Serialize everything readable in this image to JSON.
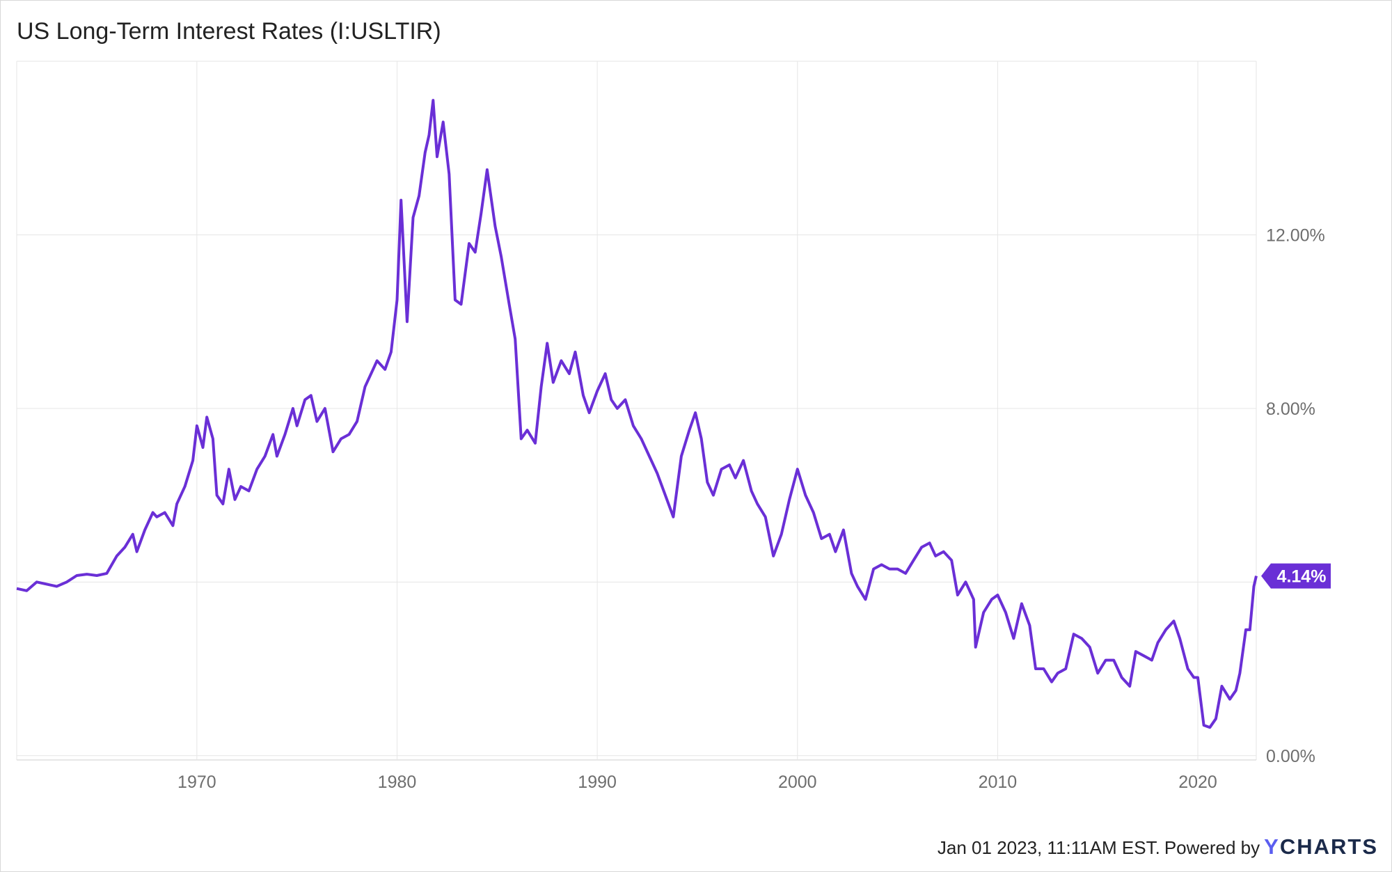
{
  "title": "US Long-Term Interest Rates (I:USLTIR)",
  "footer": {
    "timestamp": "Jan 01 2023, 11:11AM EST.",
    "powered_by": "Powered by",
    "brand_y": "Y",
    "brand_rest": "CHARTS"
  },
  "colors": {
    "line": "#6a2fd6",
    "badge": "#6a2fd6",
    "grid": "#e6e6e6"
  },
  "chart_data": {
    "type": "line",
    "title": "US Long-Term Interest Rates (I:USLTIR)",
    "x_ticks": [
      1970,
      1980,
      1990,
      2000,
      2010,
      2020
    ],
    "y_ticks": [
      {
        "value": 0,
        "label": "0.00%"
      },
      {
        "value": 4,
        "label": ""
      },
      {
        "value": 8,
        "label": "8.00%"
      },
      {
        "value": 12,
        "label": "12.00%"
      }
    ],
    "xlim": [
      1961.0,
      2022.92
    ],
    "ylim": [
      -0.1,
      16.0
    ],
    "last_value_label": "4.14%",
    "series": [
      {
        "points": [
          [
            1961.0,
            3.85
          ],
          [
            1961.5,
            3.8
          ],
          [
            1962.0,
            4.0
          ],
          [
            1962.5,
            3.95
          ],
          [
            1963.0,
            3.9
          ],
          [
            1963.5,
            4.0
          ],
          [
            1964.0,
            4.15
          ],
          [
            1964.5,
            4.18
          ],
          [
            1965.0,
            4.15
          ],
          [
            1965.5,
            4.2
          ],
          [
            1966.0,
            4.6
          ],
          [
            1966.4,
            4.8
          ],
          [
            1966.8,
            5.1
          ],
          [
            1967.0,
            4.7
          ],
          [
            1967.4,
            5.2
          ],
          [
            1967.8,
            5.6
          ],
          [
            1968.0,
            5.5
          ],
          [
            1968.4,
            5.6
          ],
          [
            1968.8,
            5.3
          ],
          [
            1969.0,
            5.8
          ],
          [
            1969.4,
            6.2
          ],
          [
            1969.8,
            6.8
          ],
          [
            1970.0,
            7.6
          ],
          [
            1970.3,
            7.1
          ],
          [
            1970.5,
            7.8
          ],
          [
            1970.8,
            7.3
          ],
          [
            1971.0,
            6.0
          ],
          [
            1971.3,
            5.8
          ],
          [
            1971.6,
            6.6
          ],
          [
            1971.9,
            5.9
          ],
          [
            1972.2,
            6.2
          ],
          [
            1972.6,
            6.1
          ],
          [
            1973.0,
            6.6
          ],
          [
            1973.4,
            6.9
          ],
          [
            1973.8,
            7.4
          ],
          [
            1974.0,
            6.9
          ],
          [
            1974.4,
            7.4
          ],
          [
            1974.8,
            8.0
          ],
          [
            1975.0,
            7.6
          ],
          [
            1975.4,
            8.2
          ],
          [
            1975.7,
            8.3
          ],
          [
            1976.0,
            7.7
          ],
          [
            1976.4,
            8.0
          ],
          [
            1976.8,
            7.0
          ],
          [
            1977.2,
            7.3
          ],
          [
            1977.6,
            7.4
          ],
          [
            1978.0,
            7.7
          ],
          [
            1978.4,
            8.5
          ],
          [
            1978.8,
            8.9
          ],
          [
            1979.0,
            9.1
          ],
          [
            1979.4,
            8.9
          ],
          [
            1979.7,
            9.3
          ],
          [
            1980.0,
            10.5
          ],
          [
            1980.2,
            12.8
          ],
          [
            1980.5,
            10.0
          ],
          [
            1980.8,
            12.4
          ],
          [
            1981.1,
            12.9
          ],
          [
            1981.4,
            13.9
          ],
          [
            1981.6,
            14.3
          ],
          [
            1981.8,
            15.1
          ],
          [
            1982.0,
            13.8
          ],
          [
            1982.3,
            14.6
          ],
          [
            1982.6,
            13.4
          ],
          [
            1982.9,
            10.5
          ],
          [
            1983.2,
            10.4
          ],
          [
            1983.6,
            11.8
          ],
          [
            1983.9,
            11.6
          ],
          [
            1984.2,
            12.5
          ],
          [
            1984.5,
            13.5
          ],
          [
            1984.9,
            12.2
          ],
          [
            1985.2,
            11.5
          ],
          [
            1985.6,
            10.4
          ],
          [
            1985.9,
            9.6
          ],
          [
            1986.2,
            7.3
          ],
          [
            1986.5,
            7.5
          ],
          [
            1986.9,
            7.2
          ],
          [
            1987.2,
            8.5
          ],
          [
            1987.5,
            9.5
          ],
          [
            1987.8,
            8.6
          ],
          [
            1988.2,
            9.1
          ],
          [
            1988.6,
            8.8
          ],
          [
            1988.9,
            9.3
          ],
          [
            1989.3,
            8.3
          ],
          [
            1989.6,
            7.9
          ],
          [
            1990.0,
            8.4
          ],
          [
            1990.4,
            8.8
          ],
          [
            1990.7,
            8.2
          ],
          [
            1991.0,
            8.0
          ],
          [
            1991.4,
            8.2
          ],
          [
            1991.8,
            7.6
          ],
          [
            1992.2,
            7.3
          ],
          [
            1992.6,
            6.9
          ],
          [
            1993.0,
            6.5
          ],
          [
            1993.4,
            6.0
          ],
          [
            1993.8,
            5.5
          ],
          [
            1994.2,
            6.9
          ],
          [
            1994.6,
            7.5
          ],
          [
            1994.9,
            7.9
          ],
          [
            1995.2,
            7.3
          ],
          [
            1995.5,
            6.3
          ],
          [
            1995.8,
            6.0
          ],
          [
            1996.2,
            6.6
          ],
          [
            1996.6,
            6.7
          ],
          [
            1996.9,
            6.4
          ],
          [
            1997.3,
            6.8
          ],
          [
            1997.7,
            6.1
          ],
          [
            1998.0,
            5.8
          ],
          [
            1998.4,
            5.5
          ],
          [
            1998.8,
            4.6
          ],
          [
            1999.2,
            5.1
          ],
          [
            1999.6,
            5.9
          ],
          [
            2000.0,
            6.6
          ],
          [
            2000.4,
            6.0
          ],
          [
            2000.8,
            5.6
          ],
          [
            2001.2,
            5.0
          ],
          [
            2001.6,
            5.1
          ],
          [
            2001.9,
            4.7
          ],
          [
            2002.3,
            5.2
          ],
          [
            2002.7,
            4.2
          ],
          [
            2003.0,
            3.9
          ],
          [
            2003.4,
            3.6
          ],
          [
            2003.8,
            4.3
          ],
          [
            2004.2,
            4.4
          ],
          [
            2004.6,
            4.3
          ],
          [
            2005.0,
            4.3
          ],
          [
            2005.4,
            4.2
          ],
          [
            2005.8,
            4.5
          ],
          [
            2006.2,
            4.8
          ],
          [
            2006.6,
            4.9
          ],
          [
            2006.9,
            4.6
          ],
          [
            2007.3,
            4.7
          ],
          [
            2007.7,
            4.5
          ],
          [
            2008.0,
            3.7
          ],
          [
            2008.4,
            4.0
          ],
          [
            2008.8,
            3.6
          ],
          [
            2008.9,
            2.5
          ],
          [
            2009.3,
            3.3
          ],
          [
            2009.7,
            3.6
          ],
          [
            2010.0,
            3.7
          ],
          [
            2010.4,
            3.3
          ],
          [
            2010.8,
            2.7
          ],
          [
            2011.2,
            3.5
          ],
          [
            2011.6,
            3.0
          ],
          [
            2011.9,
            2.0
          ],
          [
            2012.3,
            2.0
          ],
          [
            2012.7,
            1.7
          ],
          [
            2013.0,
            1.9
          ],
          [
            2013.4,
            2.0
          ],
          [
            2013.8,
            2.8
          ],
          [
            2014.2,
            2.7
          ],
          [
            2014.6,
            2.5
          ],
          [
            2015.0,
            1.9
          ],
          [
            2015.4,
            2.2
          ],
          [
            2015.8,
            2.2
          ],
          [
            2016.2,
            1.8
          ],
          [
            2016.6,
            1.6
          ],
          [
            2016.9,
            2.4
          ],
          [
            2017.3,
            2.3
          ],
          [
            2017.7,
            2.2
          ],
          [
            2018.0,
            2.6
          ],
          [
            2018.4,
            2.9
          ],
          [
            2018.8,
            3.1
          ],
          [
            2019.1,
            2.7
          ],
          [
            2019.5,
            2.0
          ],
          [
            2019.8,
            1.8
          ],
          [
            2020.0,
            1.8
          ],
          [
            2020.3,
            0.7
          ],
          [
            2020.6,
            0.65
          ],
          [
            2020.9,
            0.85
          ],
          [
            2021.2,
            1.6
          ],
          [
            2021.6,
            1.3
          ],
          [
            2021.9,
            1.5
          ],
          [
            2022.1,
            1.9
          ],
          [
            2022.4,
            2.9
          ],
          [
            2022.6,
            2.9
          ],
          [
            2022.8,
            3.9
          ],
          [
            2022.92,
            4.14
          ]
        ]
      }
    ]
  }
}
